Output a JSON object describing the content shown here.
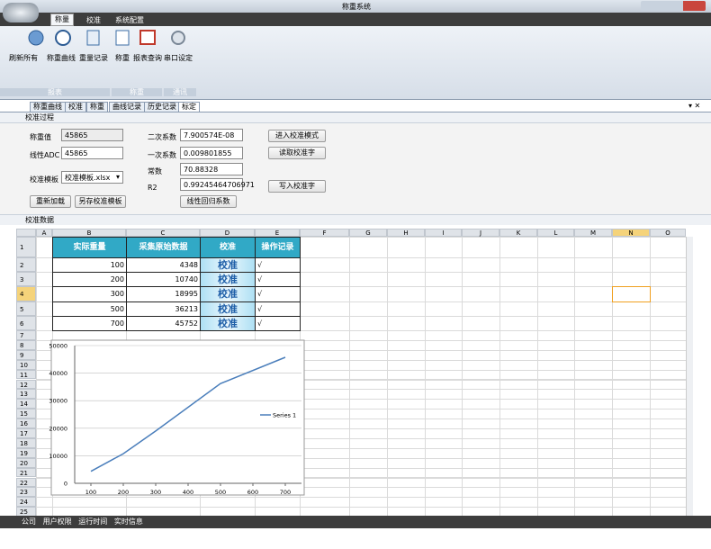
{
  "window": {
    "title": "称重系统"
  },
  "menu_tabs": [
    "称量",
    "校准",
    "系统配置"
  ],
  "ribbon": {
    "buttons": [
      "刷新所有",
      "称重曲线",
      "重量记录",
      "称重",
      "报表查询",
      "串口设定"
    ],
    "groups": [
      "报表",
      "称重",
      "通讯"
    ]
  },
  "doc_tabs": [
    "称重曲线",
    "校准",
    "称重",
    "曲线记录",
    "历史记录",
    "标定"
  ],
  "calibration": {
    "title": "校准过程",
    "fields": [
      {
        "label": "称重值",
        "value": "45865"
      },
      {
        "label": "线性ADC",
        "value": "45865"
      },
      {
        "label": "二次系数",
        "value": "7.900574E-08"
      },
      {
        "label": "一次系数",
        "value": "0.009801855"
      },
      {
        "label": "常数",
        "value": "70.88328"
      },
      {
        "label": "R2",
        "value": "0.99245464706971"
      }
    ],
    "template": {
      "label": "校准模板",
      "value": "校准模板.xlsx"
    },
    "buttons": [
      "进入校准模式",
      "读取校准字",
      "写入校准字",
      "重新加载",
      "另存校准模板",
      "线性回归系数"
    ]
  },
  "sheet": {
    "title": "校准数据",
    "columns": [
      "A",
      "B",
      "C",
      "D",
      "E",
      "F",
      "G",
      "H",
      "I",
      "J",
      "K",
      "L",
      "M",
      "N",
      "O"
    ],
    "rows": [
      1,
      2,
      3,
      4,
      5,
      6,
      7,
      8,
      9,
      10,
      11,
      12,
      13,
      14,
      15,
      16,
      17,
      18,
      19,
      20,
      21,
      22,
      23,
      24,
      25
    ],
    "header": [
      "实际重量",
      "采集原始数据",
      "校准",
      "操作记录"
    ],
    "data": [
      [
        100,
        4348,
        "校准",
        "√"
      ],
      [
        200,
        10740,
        "校准",
        "√"
      ],
      [
        300,
        18995,
        "校准",
        "√"
      ],
      [
        500,
        36213,
        "校准",
        "√"
      ],
      [
        700,
        45752,
        "校准",
        "√"
      ]
    ]
  },
  "chart_data": {
    "type": "line",
    "x": [
      100,
      200,
      300,
      500,
      700
    ],
    "series": [
      {
        "name": "Series 1",
        "color": "#4a7ebb",
        "values": [
          4348,
          10740,
          18995,
          36213,
          45752
        ]
      }
    ],
    "xlim": [
      50,
      750
    ],
    "ylim": [
      0,
      50000
    ],
    "xticks": [
      100,
      200,
      300,
      400,
      500,
      600,
      700
    ],
    "yticks": [
      0,
      10000,
      20000,
      30000,
      40000,
      50000
    ],
    "grid": true,
    "legend": "right"
  },
  "status": [
    "公司",
    "用户权限",
    "运行时间",
    "实时信息"
  ]
}
